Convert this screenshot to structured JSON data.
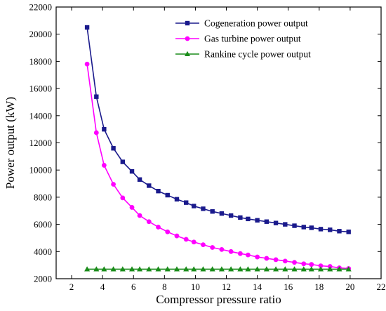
{
  "chart_data": {
    "type": "line",
    "xlabel": "Compressor pressure ratio",
    "ylabel": "Power output (kW)",
    "xlim": [
      1,
      22
    ],
    "ylim": [
      2000,
      22000
    ],
    "xticks": [
      2,
      4,
      6,
      8,
      10,
      12,
      14,
      16,
      18,
      20,
      22
    ],
    "yticks": [
      2000,
      4000,
      6000,
      8000,
      10000,
      12000,
      14000,
      16000,
      18000,
      20000,
      22000
    ],
    "legend_position": "top-right",
    "x": [
      3.0,
      3.6,
      4.1,
      4.7,
      5.3,
      5.9,
      6.4,
      7.0,
      7.6,
      8.2,
      8.8,
      9.4,
      9.9,
      10.5,
      11.1,
      11.7,
      12.3,
      12.9,
      13.4,
      14.0,
      14.6,
      15.2,
      15.8,
      16.4,
      17.0,
      17.5,
      18.1,
      18.7,
      19.3,
      19.9
    ],
    "series": [
      {
        "name": "Cogeneration power output",
        "color": "#1a1a8c",
        "marker": "square",
        "values": [
          20500,
          15400,
          13000,
          11600,
          10600,
          9900,
          9300,
          8850,
          8450,
          8150,
          7850,
          7600,
          7350,
          7150,
          6950,
          6800,
          6650,
          6500,
          6400,
          6300,
          6200,
          6100,
          6000,
          5900,
          5800,
          5750,
          5650,
          5600,
          5500,
          5450
        ]
      },
      {
        "name": "Gas turbine power output",
        "color": "#ff00ff",
        "marker": "circle",
        "values": [
          17800,
          12750,
          10350,
          8950,
          7950,
          7250,
          6650,
          6200,
          5800,
          5450,
          5150,
          4900,
          4700,
          4500,
          4300,
          4150,
          4000,
          3850,
          3750,
          3600,
          3500,
          3400,
          3300,
          3200,
          3100,
          3050,
          2950,
          2900,
          2800,
          2750
        ]
      },
      {
        "name": "Rankine cycle power output",
        "color": "#1a8c1a",
        "marker": "triangle",
        "values": [
          2700,
          2700,
          2700,
          2700,
          2700,
          2700,
          2700,
          2700,
          2700,
          2700,
          2700,
          2700,
          2700,
          2700,
          2700,
          2700,
          2700,
          2700,
          2700,
          2700,
          2700,
          2700,
          2700,
          2700,
          2700,
          2700,
          2700,
          2700,
          2700,
          2700
        ]
      }
    ]
  }
}
